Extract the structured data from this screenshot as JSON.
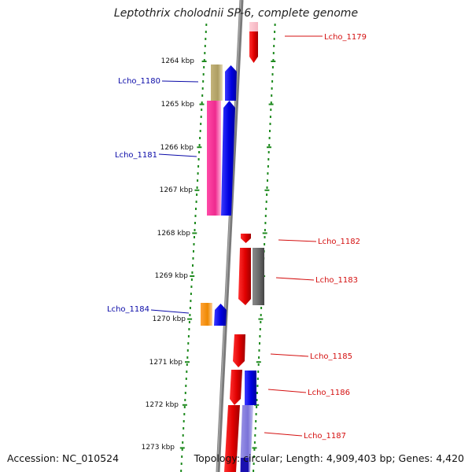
{
  "title": "Leptothrix cholodnii SP-6, complete genome",
  "footer": {
    "accession": "Accession: NC_010524",
    "topology": "Topology: circular; Length: 4,909,403 bp; Genes: 4,420"
  },
  "colors": {
    "backbone": "#7a7a7a",
    "dots": "#1f8a1f",
    "left_label": "#0a0aa8",
    "right_label": "#d41010"
  },
  "kbp_ticks": [
    "1264 kbp",
    "1265 kbp",
    "1266 kbp",
    "1267 kbp",
    "1268 kbp",
    "1269 kbp",
    "1270 kbp",
    "1271 kbp",
    "1272 kbp",
    "1273 kbp"
  ],
  "gene_labels": [
    {
      "text": "Lcho_1179",
      "side": "right"
    },
    {
      "text": "Lcho_1180",
      "side": "left"
    },
    {
      "text": "Lcho_1181",
      "side": "left"
    },
    {
      "text": "Lcho_1182",
      "side": "right"
    },
    {
      "text": "Lcho_1183",
      "side": "right"
    },
    {
      "text": "Lcho_1184",
      "side": "left"
    },
    {
      "text": "Lcho_1185",
      "side": "right"
    },
    {
      "text": "Lcho_1186",
      "side": "right"
    },
    {
      "text": "Lcho_1187",
      "side": "right"
    }
  ]
}
